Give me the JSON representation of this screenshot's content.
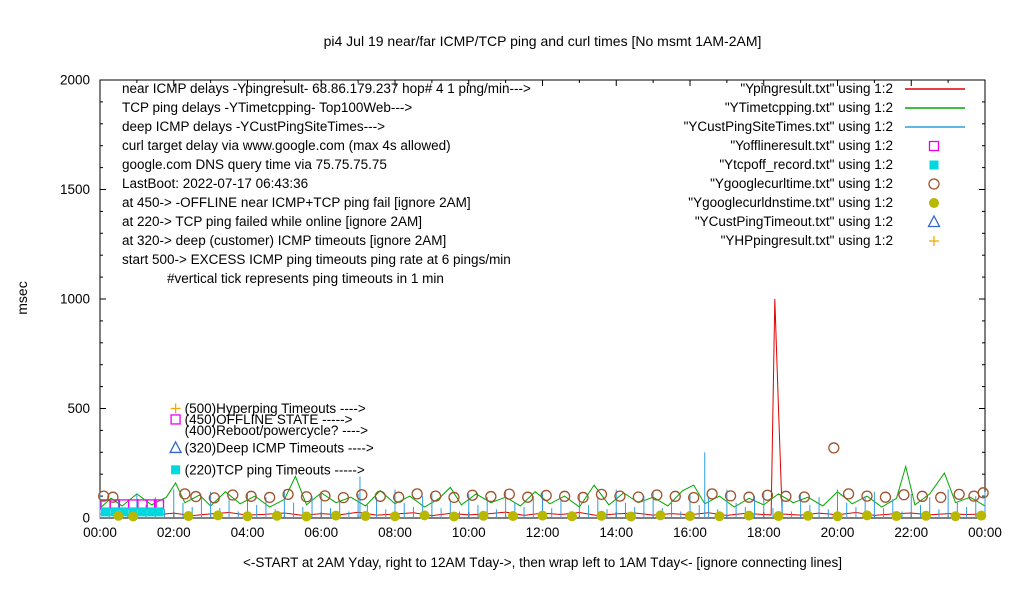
{
  "title": "pi4 Jul 19  near/far ICMP/TCP ping and curl times [No msmt 1AM-2AM]",
  "ylabel": "msec",
  "xlabel": "<-START at 2AM Yday, right to 12AM Tday->, then wrap left to 1AM Tday<- [ignore connecting lines]",
  "chart_data": {
    "type": "line",
    "x_range": [
      0,
      24
    ],
    "y_range": [
      0,
      2000
    ],
    "grid": false,
    "legend_position": "top-right-inside",
    "x_ticks": {
      "values": [
        0,
        2,
        4,
        6,
        8,
        10,
        12,
        14,
        16,
        18,
        20,
        22,
        24
      ],
      "labels": [
        "00:00",
        "02:00",
        "04:00",
        "06:00",
        "08:00",
        "10:00",
        "12:00",
        "14:00",
        "16:00",
        "18:00",
        "20:00",
        "22:00",
        "00:00"
      ]
    },
    "y_ticks": [
      0,
      500,
      1000,
      1500,
      2000
    ],
    "series": [
      {
        "name": "Ypingresult",
        "style": "line",
        "color": "#e00000",
        "points": [
          [
            0,
            18
          ],
          [
            0.5,
            12
          ],
          [
            1,
            20
          ],
          [
            1.5,
            14
          ],
          [
            2,
            22
          ],
          [
            2.5,
            11
          ],
          [
            3,
            19
          ],
          [
            3.5,
            25
          ],
          [
            4,
            13
          ],
          [
            4.5,
            17
          ],
          [
            5,
            23
          ],
          [
            5.5,
            12
          ],
          [
            6,
            20
          ],
          [
            6.5,
            15
          ],
          [
            7,
            26
          ],
          [
            7.5,
            13
          ],
          [
            8,
            18
          ],
          [
            8.5,
            24
          ],
          [
            9,
            11
          ],
          [
            9.5,
            21
          ],
          [
            10,
            14
          ],
          [
            10.5,
            19
          ],
          [
            11,
            27
          ],
          [
            11.5,
            12
          ],
          [
            12,
            22
          ],
          [
            12.5,
            16
          ],
          [
            13,
            25
          ],
          [
            13.5,
            11
          ],
          [
            14,
            19
          ],
          [
            14.5,
            23
          ],
          [
            15,
            13
          ],
          [
            15.5,
            20
          ],
          [
            16,
            15
          ],
          [
            16.5,
            24
          ],
          [
            17,
            12
          ],
          [
            17.5,
            21
          ],
          [
            18,
            16
          ],
          [
            18.2,
            14
          ],
          [
            18.3,
            1000
          ],
          [
            18.4,
            500
          ],
          [
            18.5,
            18
          ],
          [
            19,
            13
          ],
          [
            19.5,
            22
          ],
          [
            20,
            15
          ],
          [
            20.5,
            25
          ],
          [
            21,
            12
          ],
          [
            21.5,
            19
          ],
          [
            22,
            23
          ],
          [
            22.5,
            14
          ],
          [
            23,
            20
          ],
          [
            23.5,
            16
          ],
          [
            24,
            18
          ]
        ]
      },
      {
        "name": "YTimetcpping",
        "style": "line",
        "color": "#00a800",
        "points": [
          [
            0,
            45
          ],
          [
            0.3,
            90
          ],
          [
            0.6,
            55
          ],
          [
            1,
            110
          ],
          [
            1.4,
            60
          ],
          [
            1.8,
            95
          ],
          [
            2.05,
            160
          ],
          [
            2.3,
            70
          ],
          [
            2.7,
            105
          ],
          [
            3,
            55
          ],
          [
            3.4,
            120
          ],
          [
            3.8,
            65
          ],
          [
            4.2,
            100
          ],
          [
            4.6,
            50
          ],
          [
            5,
            85
          ],
          [
            5.3,
            190
          ],
          [
            5.6,
            60
          ],
          [
            6,
            115
          ],
          [
            6.4,
            70
          ],
          [
            6.8,
            95
          ],
          [
            7.2,
            55
          ],
          [
            7.6,
            125
          ],
          [
            8,
            65
          ],
          [
            8.4,
            100
          ],
          [
            8.8,
            50
          ],
          [
            9.2,
            90
          ],
          [
            9.5,
            140
          ],
          [
            9.8,
            60
          ],
          [
            10.2,
            110
          ],
          [
            10.6,
            70
          ],
          [
            11,
            95
          ],
          [
            11.4,
            55
          ],
          [
            11.8,
            120
          ],
          [
            12.2,
            65
          ],
          [
            12.6,
            100
          ],
          [
            13,
            50
          ],
          [
            13.4,
            150
          ],
          [
            13.8,
            60
          ],
          [
            14.2,
            115
          ],
          [
            14.6,
            70
          ],
          [
            15,
            95
          ],
          [
            15.4,
            55
          ],
          [
            15.8,
            125
          ],
          [
            16.1,
            150
          ],
          [
            16.4,
            65
          ],
          [
            16.8,
            100
          ],
          [
            17.2,
            50
          ],
          [
            17.6,
            90
          ],
          [
            18,
            60
          ],
          [
            18.4,
            110
          ],
          [
            18.8,
            70
          ],
          [
            19.2,
            95
          ],
          [
            19.6,
            55
          ],
          [
            20,
            120
          ],
          [
            20.4,
            65
          ],
          [
            20.8,
            100
          ],
          [
            21.2,
            50
          ],
          [
            21.6,
            90
          ],
          [
            21.85,
            235
          ],
          [
            22.1,
            60
          ],
          [
            22.5,
            110
          ],
          [
            22.9,
            205
          ],
          [
            23.2,
            70
          ],
          [
            23.6,
            95
          ],
          [
            24,
            55
          ]
        ]
      },
      {
        "name": "YCustPingSiteTimes",
        "style": "impulses",
        "color": "#2e9ddf",
        "x_start": 0,
        "x_step": 0.25,
        "heights": [
          120,
          45,
          85,
          30,
          110,
          60,
          95,
          40,
          130,
          70,
          50,
          100,
          120,
          45,
          85,
          30,
          110,
          60,
          95,
          40,
          130,
          70,
          50,
          100,
          120,
          45,
          85,
          30,
          110,
          60,
          95,
          40,
          130,
          70,
          50,
          100,
          120,
          45,
          85,
          30,
          110,
          60,
          95,
          40,
          130,
          70,
          50,
          100,
          120,
          45,
          85,
          30,
          110,
          60,
          95,
          40,
          130,
          70,
          50,
          100,
          120,
          45,
          85,
          30,
          110,
          60,
          95,
          40,
          130,
          70,
          50,
          100,
          120,
          45,
          85,
          30,
          110,
          60,
          95,
          40,
          130,
          70,
          50,
          100,
          120,
          45,
          85,
          30,
          110,
          60,
          95,
          40,
          130,
          70,
          50,
          100,
          120
        ],
        "extra": [
          [
            7.05,
            190
          ],
          [
            16.4,
            300
          ]
        ]
      },
      {
        "name": "Yofflineresult",
        "style": "square-open",
        "color": "#ee00ee",
        "points": [
          [
            0.15,
            62
          ],
          [
            0.4,
            62
          ],
          [
            0.65,
            62
          ],
          [
            0.9,
            62
          ],
          [
            1.15,
            62
          ],
          [
            1.4,
            62
          ],
          [
            1.6,
            62
          ]
        ]
      },
      {
        "name": "Ytcpoff_record",
        "style": "square-filled",
        "color": "#00d8e0",
        "points": [
          [
            0.15,
            28
          ],
          [
            0.4,
            28
          ],
          [
            0.65,
            28
          ],
          [
            0.9,
            28
          ],
          [
            1.15,
            28
          ],
          [
            1.4,
            28
          ],
          [
            1.6,
            28
          ]
        ]
      },
      {
        "name": "Ygooglecurltime",
        "style": "circle-open",
        "color": "#a0522d",
        "points": [
          [
            0.1,
            100
          ],
          [
            0.35,
            95
          ],
          [
            2.3,
            110
          ],
          [
            2.6,
            98
          ],
          [
            3.1,
            92
          ],
          [
            3.6,
            105
          ],
          [
            4.1,
            99
          ],
          [
            4.6,
            94
          ],
          [
            5.1,
            108
          ],
          [
            5.6,
            97
          ],
          [
            6.1,
            101
          ],
          [
            6.6,
            93
          ],
          [
            7.1,
            106
          ],
          [
            7.6,
            99
          ],
          [
            8.1,
            95
          ],
          [
            8.6,
            110
          ],
          [
            9.1,
            100
          ],
          [
            9.6,
            94
          ],
          [
            10.1,
            104
          ],
          [
            10.6,
            98
          ],
          [
            11.1,
            109
          ],
          [
            11.6,
            95
          ],
          [
            12.1,
            103
          ],
          [
            12.6,
            99
          ],
          [
            13.1,
            94
          ],
          [
            13.6,
            108
          ],
          [
            14.1,
            100
          ],
          [
            14.6,
            96
          ],
          [
            15.1,
            105
          ],
          [
            15.6,
            99
          ],
          [
            16.1,
            93
          ],
          [
            16.6,
            110
          ],
          [
            17.1,
            101
          ],
          [
            17.6,
            95
          ],
          [
            18.1,
            104
          ],
          [
            18.6,
            99
          ],
          [
            19.1,
            96
          ],
          [
            19.9,
            320
          ],
          [
            20.3,
            110
          ],
          [
            20.8,
            100
          ],
          [
            21.3,
            95
          ],
          [
            21.8,
            106
          ],
          [
            22.3,
            99
          ],
          [
            22.8,
            94
          ],
          [
            23.3,
            108
          ],
          [
            23.7,
            100
          ],
          [
            23.95,
            115
          ]
        ]
      },
      {
        "name": "Ygooglecurldnstime",
        "style": "circle-filled",
        "color": "#b8b800",
        "points": [
          [
            0.5,
            10
          ],
          [
            0.9,
            7
          ],
          [
            2.4,
            9
          ],
          [
            3.2,
            12
          ],
          [
            4.0,
            8
          ],
          [
            4.8,
            10
          ],
          [
            5.6,
            7
          ],
          [
            6.4,
            11
          ],
          [
            7.2,
            9
          ],
          [
            8.0,
            8
          ],
          [
            8.8,
            12
          ],
          [
            9.6,
            7
          ],
          [
            10.4,
            10
          ],
          [
            11.2,
            9
          ],
          [
            12.0,
            11
          ],
          [
            12.8,
            8
          ],
          [
            13.6,
            10
          ],
          [
            14.4,
            7
          ],
          [
            15.2,
            12
          ],
          [
            16.0,
            9
          ],
          [
            16.8,
            8
          ],
          [
            17.6,
            11
          ],
          [
            18.4,
            9
          ],
          [
            19.2,
            10
          ],
          [
            20.0,
            8
          ],
          [
            20.8,
            12
          ],
          [
            21.6,
            9
          ],
          [
            22.4,
            10
          ],
          [
            23.2,
            8
          ],
          [
            23.9,
            11
          ]
        ]
      },
      {
        "name": "YCustPingTimeout",
        "style": "triangle-open",
        "color": "#3366cc",
        "points": []
      },
      {
        "name": "YHPpingresult",
        "style": "plus",
        "color": "#eeaa00",
        "points": []
      }
    ],
    "legend": [
      {
        "label": "\"Ypingresult.txt\" using 1:2",
        "marker": "line",
        "color": "#e00000"
      },
      {
        "label": "\"YTimetcpping.txt\" using 1:2",
        "marker": "line",
        "color": "#00a800"
      },
      {
        "label": "\"YCustPingSiteTimes.txt\" using 1:2",
        "marker": "line",
        "color": "#2e9ddf"
      },
      {
        "label": "\"Yofflineresult.txt\" using 1:2",
        "marker": "square-open",
        "color": "#ee00ee"
      },
      {
        "label": "\"Ytcpoff_record.txt\" using 1:2",
        "marker": "square-filled",
        "color": "#00d8e0"
      },
      {
        "label": "\"Ygooglecurltime.txt\" using 1:2",
        "marker": "circle-open",
        "color": "#a0522d"
      },
      {
        "label": "\"Ygooglecurldnstime.txt\" using 1:2",
        "marker": "circle-filled",
        "color": "#b8b800"
      },
      {
        "label": "\"YCustPingTimeout.txt\" using 1:2",
        "marker": "triangle-open",
        "color": "#3366cc"
      },
      {
        "label": "\"YHPpingresult.txt\" using 1:2",
        "marker": "plus",
        "color": "#eeaa00"
      }
    ],
    "notes_left": [
      "near ICMP delays -Ypingresult- 68.86.179.237 hop# 4 1 ping/min--->",
      "TCP ping delays -YTimetcpping- Top100Web--->",
      "deep ICMP delays -YCustPingSiteTimes--->",
      "curl target delay via www.google.com (max 4s allowed)",
      "google.com DNS query time via 75.75.75.75",
      "LastBoot: 2022-07-17 06:43:36",
      "at 450-> -OFFLINE near ICMP+TCP ping fail [ignore 2AM]",
      "at 220-> TCP ping failed while online [ignore 2AM]",
      "at 320-> deep (customer) ICMP timeouts [ignore 2AM]",
      "start 500-> EXCESS ICMP ping timeouts ping rate at 6 pings/min",
      "#vertical tick represents ping timeouts in 1 min"
    ],
    "annotations": [
      {
        "x": 2.05,
        "y": 500,
        "marker": "plus",
        "color": "#eeaa00",
        "label": "(500)Hyperping Timeouts ---->"
      },
      {
        "x": 2.05,
        "y": 450,
        "marker": "square-open",
        "color": "#ee00ee",
        "label": "(450)OFFLINE STATE ----->"
      },
      {
        "x": 2.05,
        "y": 400,
        "marker": "none",
        "color": "#000000",
        "label": "(400)Reboot/powercycle? ---->"
      },
      {
        "x": 2.05,
        "y": 320,
        "marker": "triangle-open",
        "color": "#3366cc",
        "label": "(320)Deep ICMP Timeouts ---->"
      },
      {
        "x": 2.05,
        "y": 220,
        "marker": "square-filled",
        "color": "#00d8e0",
        "label": "(220)TCP ping Timeouts ----->"
      }
    ]
  }
}
